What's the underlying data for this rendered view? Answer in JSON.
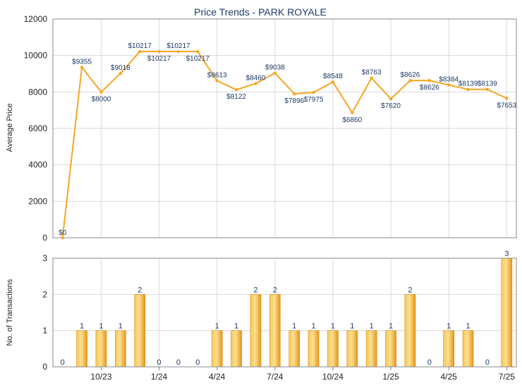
{
  "chart_data": [
    {
      "type": "line",
      "title": "Price Trends - PARK ROYALE",
      "ylabel": "Average Price",
      "ylim": [
        0,
        12000
      ],
      "yticks": [
        0,
        2000,
        4000,
        6000,
        8000,
        10000,
        12000
      ],
      "grid": true,
      "color": "#f5a623",
      "x": [
        0,
        1,
        2,
        3,
        4,
        5,
        6,
        7,
        8,
        9,
        10,
        11,
        12,
        13,
        14,
        15,
        16,
        17,
        18,
        19,
        20,
        21,
        22,
        23
      ],
      "values": [
        0,
        9355,
        8000,
        9018,
        10217,
        10217,
        10217,
        10217,
        8613,
        8122,
        8460,
        9038,
        7896,
        7975,
        8548,
        6860,
        8763,
        7620,
        8626,
        8626,
        8384,
        8139,
        8139,
        7653
      ],
      "labels": [
        "$0",
        "$9355",
        "$8000",
        "$9018",
        "$10217",
        "$10217",
        "$10217",
        "$10217",
        "$8613",
        "$8122",
        "$8460",
        "$9038",
        "$7896",
        "$7975",
        "$8548",
        "$6860",
        "$8763",
        "$7620",
        "$8626",
        "$8626",
        "$8384",
        "$8139",
        "$8139",
        "$7653"
      ]
    },
    {
      "type": "bar",
      "ylabel": "No. of Transactions",
      "ylim": [
        0,
        3
      ],
      "yticks": [
        0,
        1,
        2,
        3
      ],
      "grid": true,
      "color": "#f0a830",
      "values": [
        0,
        1,
        1,
        1,
        2,
        0,
        0,
        0,
        1,
        1,
        2,
        2,
        1,
        1,
        1,
        1,
        1,
        1,
        2,
        0,
        1,
        1,
        0,
        3
      ],
      "xticks": [
        "10/23",
        "1/24",
        "4/24",
        "7/24",
        "10/24",
        "1/25",
        "4/25",
        "7/25"
      ],
      "xtick_index": [
        2,
        5,
        8,
        11,
        14,
        17,
        20,
        23
      ]
    }
  ]
}
